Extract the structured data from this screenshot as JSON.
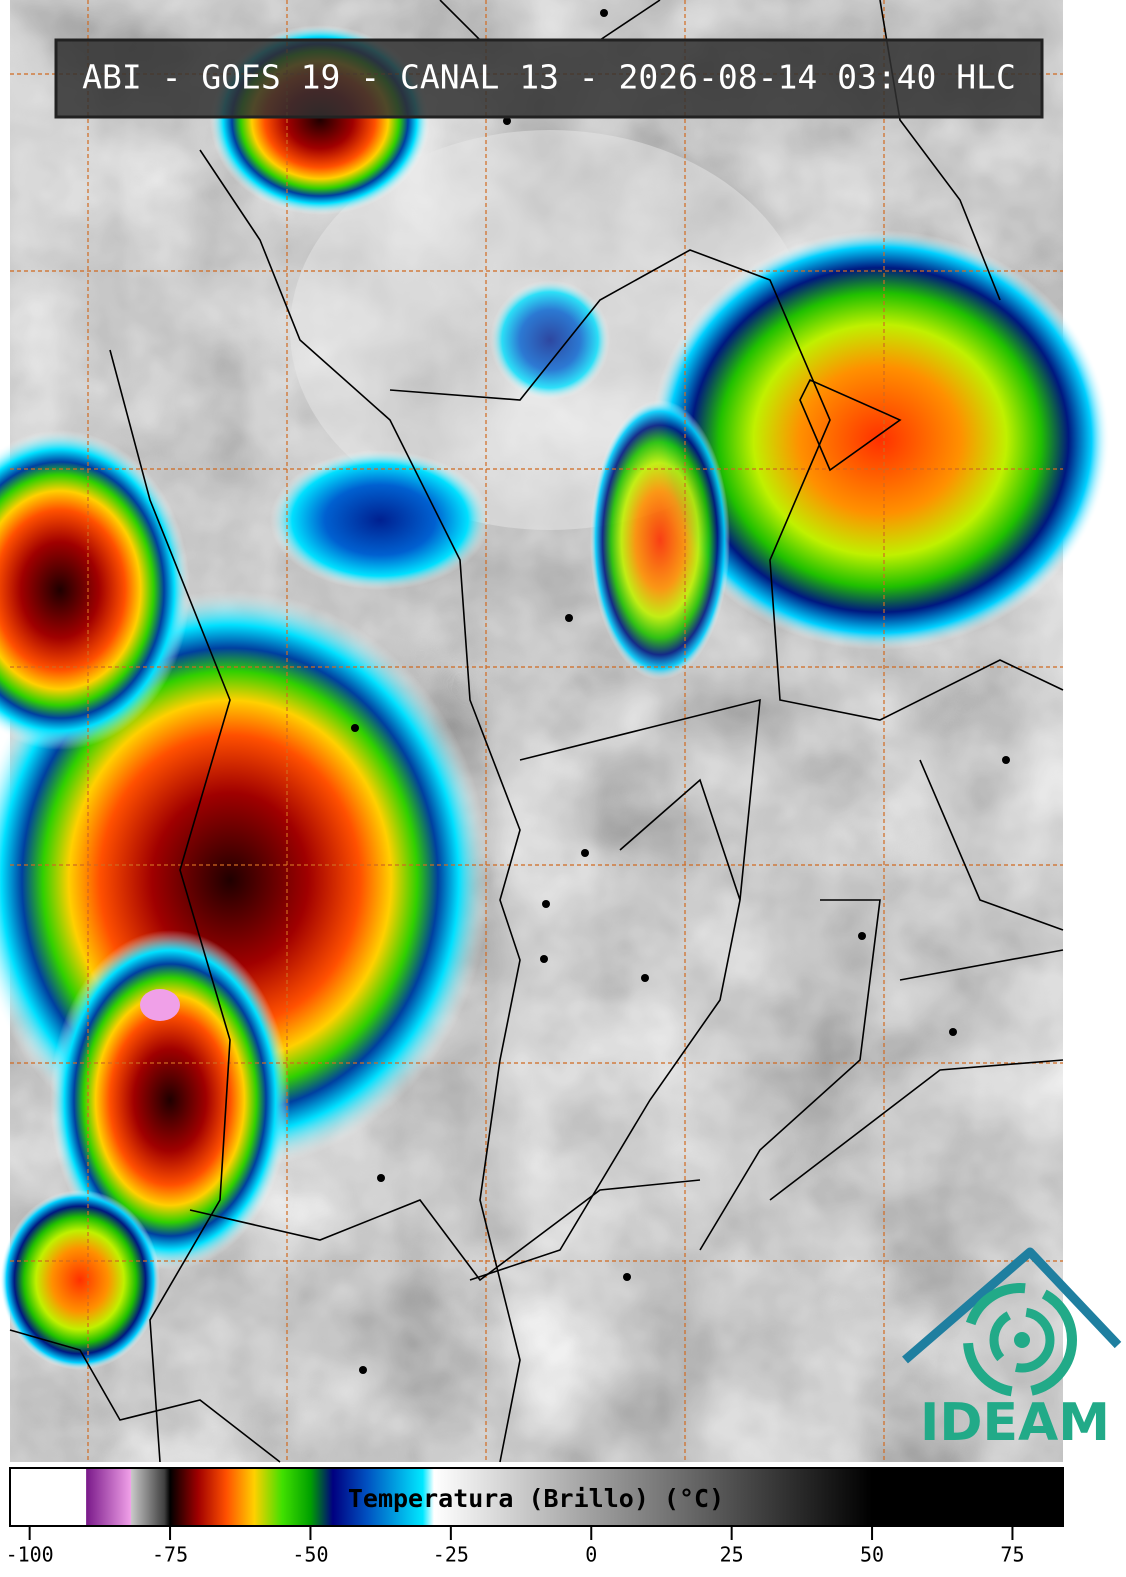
{
  "header": {
    "title": "ABI - GOES 19 - CANAL 13 - 2026-08-14 03:40 HLC"
  },
  "colorbar": {
    "label": "Temperatura (Brillo) (°C)",
    "xlim": [
      -103.5,
      84
    ],
    "xticks": [
      -100,
      -75,
      -50,
      -25,
      0,
      25,
      50,
      75
    ],
    "stops": [
      {
        "value": -90,
        "color": "#ffffff"
      },
      {
        "value": -89.9,
        "color": "#7a1a8a"
      },
      {
        "value": -82,
        "color": "#f0a0e8"
      },
      {
        "value": -81.9,
        "color": "#c8c8c8"
      },
      {
        "value": -76,
        "color": "#404040"
      },
      {
        "value": -75,
        "color": "#000000"
      },
      {
        "value": -70,
        "color": "#a00000"
      },
      {
        "value": -65,
        "color": "#ff5000"
      },
      {
        "value": -60,
        "color": "#ffd000"
      },
      {
        "value": -55,
        "color": "#40e000"
      },
      {
        "value": -50,
        "color": "#00a000"
      },
      {
        "value": -46,
        "color": "#000080"
      },
      {
        "value": -40,
        "color": "#0050c0"
      },
      {
        "value": -30,
        "color": "#00e8ff"
      },
      {
        "value": -28,
        "color": "#ffffff"
      },
      {
        "value": 0,
        "color": "#a0a0a0"
      },
      {
        "value": 30,
        "color": "#404040"
      },
      {
        "value": 50,
        "color": "#000000"
      }
    ]
  },
  "logo": {
    "text": "IDEAM"
  }
}
